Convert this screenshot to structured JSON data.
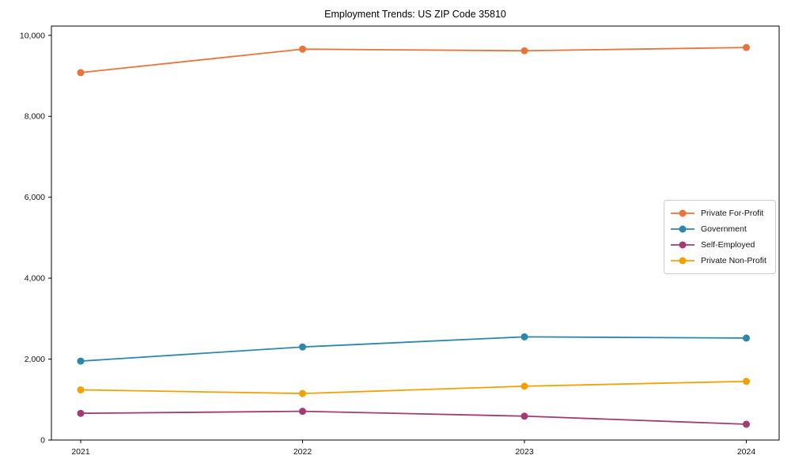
{
  "page": {
    "title": "Employment Trends: US ZIP Code 35810"
  },
  "chart_data": {
    "type": "line",
    "title": "Employment Trends: US ZIP Code 35810",
    "categories": [
      "2021",
      "2022",
      "2023",
      "2024"
    ],
    "series": [
      {
        "name": "Private For-Profit",
        "color": "#E8743B",
        "values": [
          9080,
          9660,
          9620,
          9700
        ]
      },
      {
        "name": "Government",
        "color": "#2E86AB",
        "values": [
          1950,
          2300,
          2550,
          2520
        ]
      },
      {
        "name": "Self-Employed",
        "color": "#A23B72",
        "values": [
          660,
          710,
          590,
          390
        ]
      },
      {
        "name": "Private Non-Profit",
        "color": "#F2A104",
        "values": [
          1240,
          1150,
          1330,
          1450
        ]
      }
    ],
    "xlabel": "",
    "ylabel": "",
    "ylim": [
      0,
      10230
    ],
    "yticks": [
      0,
      2000,
      4000,
      6000,
      8000,
      10000
    ],
    "ytick_labels": [
      "0",
      "2,000",
      "4,000",
      "6,000",
      "8,000",
      "10,000"
    ],
    "grid": false,
    "frame": true,
    "legend_position": "center-right",
    "axis_color": "#000000",
    "marker_radius": 4.5,
    "line_width": 1.8
  }
}
